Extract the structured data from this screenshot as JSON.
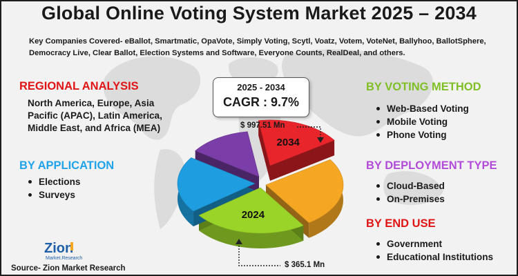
{
  "title": "Global Online Voting System Market 2025 – 2034",
  "companies": "Key Companies Covered- eBallot, Smartmatic, OpaVote, Simply Voting, Scytl, Voatz, Votem, VoteNet, Ballyhoo, BallotSphere, Democracy Live, Clear Ballot, Election Systems and Software, Everyone Counts, RealDeal, and others.",
  "regional": {
    "heading": "REGIONAL ANALYSIS",
    "text": "North America, Europe, Asia Pacific (APAC), Latin America, Middle East, and Africa (MEA)"
  },
  "application": {
    "heading": "BY APPLICATION",
    "items": [
      "Elections",
      "Surveys"
    ]
  },
  "voting_method": {
    "heading": "BY VOTING METHOD",
    "items": [
      "Web-Based Voting",
      "Mobile Voting",
      "Phone Voting"
    ]
  },
  "deployment": {
    "heading": "BY DEPLOYMENT TYPE",
    "items": [
      "Cloud-Based",
      "On-Premises"
    ]
  },
  "end_use": {
    "heading": "BY END USE",
    "items": [
      "Government",
      "Educational Institutions"
    ]
  },
  "cagr": {
    "period": "2025 - 2034",
    "value": "CAGR : 9.7%"
  },
  "logo": {
    "text": "Zion",
    "subtext": "Market.Research"
  },
  "source": "Source- Zion Market Research",
  "colors": {
    "red_heading": "#e01414",
    "blue_heading": "#20a3e8",
    "green_heading": "#7fbf25",
    "violet_heading": "#b24bd8"
  },
  "chart_data": {
    "type": "pie",
    "annotations": [
      {
        "year": "2034",
        "value": 997.51,
        "label": "$ 997.51 Mn"
      },
      {
        "year": "2024",
        "value": 365.1,
        "label": "$ 365.1 Mn"
      }
    ],
    "slices": [
      {
        "label": "2034",
        "value": 18,
        "color": "#e8252b"
      },
      {
        "label": "",
        "value": 25,
        "color": "#f5a623"
      },
      {
        "label": "2024",
        "value": 24,
        "color": "#9ad429"
      },
      {
        "label": "",
        "value": 20,
        "color": "#1e9ee0"
      },
      {
        "label": "",
        "value": 13,
        "color": "#7b3ea8"
      }
    ]
  }
}
